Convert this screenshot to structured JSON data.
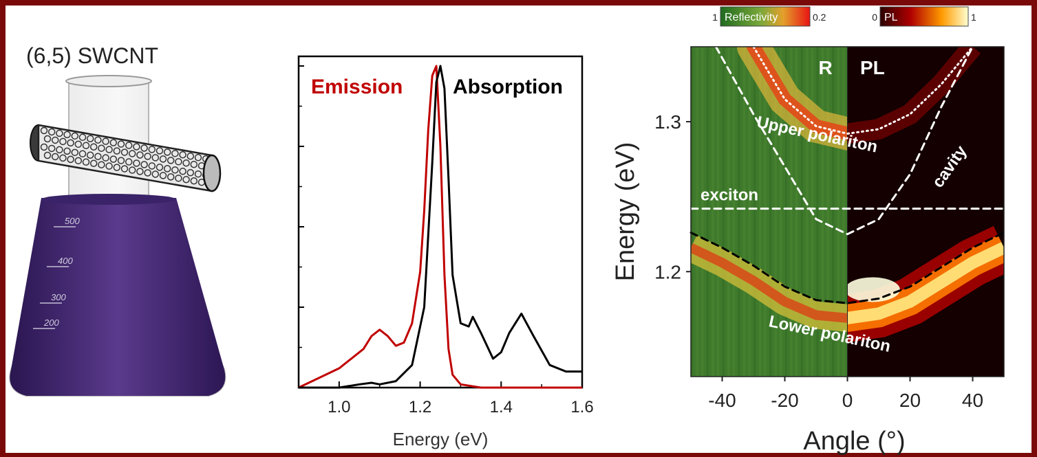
{
  "sample": {
    "title": "(6,5) SWCNT"
  },
  "beaker_labels": [
    "500",
    "400",
    "300",
    "200"
  ],
  "colors": {
    "frame": "#7a0a0a",
    "emission": "#c00000",
    "absorption": "#000000",
    "solution": "#3b2163"
  },
  "chart_data": [
    {
      "type": "line",
      "xlabel": "Energy (eV)",
      "ylabel": "",
      "xlim": [
        0.9,
        1.6
      ],
      "ylim": [
        0,
        1
      ],
      "xticks": [
        "1.0",
        "1.2",
        "1.4",
        "1.6"
      ],
      "series": [
        {
          "name": "Emission",
          "color": "#c00000",
          "x": [
            0.9,
            0.95,
            1.0,
            1.03,
            1.06,
            1.08,
            1.1,
            1.12,
            1.14,
            1.16,
            1.18,
            1.2,
            1.21,
            1.22,
            1.23,
            1.24,
            1.25,
            1.26,
            1.27,
            1.28,
            1.3,
            1.35,
            1.4,
            1.5,
            1.6
          ],
          "y": [
            0.0,
            0.03,
            0.06,
            0.09,
            0.12,
            0.16,
            0.18,
            0.16,
            0.13,
            0.14,
            0.2,
            0.36,
            0.55,
            0.8,
            0.97,
            1.0,
            0.75,
            0.35,
            0.12,
            0.04,
            0.01,
            0.0,
            0.0,
            0.0,
            0.0
          ]
        },
        {
          "name": "Absorption",
          "color": "#000000",
          "x": [
            0.9,
            1.0,
            1.05,
            1.08,
            1.1,
            1.14,
            1.18,
            1.21,
            1.23,
            1.24,
            1.25,
            1.26,
            1.27,
            1.28,
            1.3,
            1.32,
            1.33,
            1.35,
            1.38,
            1.4,
            1.42,
            1.45,
            1.48,
            1.52,
            1.56,
            1.6
          ],
          "y": [
            0.0,
            0.0,
            0.01,
            0.015,
            0.01,
            0.02,
            0.07,
            0.25,
            0.7,
            0.95,
            1.0,
            0.93,
            0.65,
            0.35,
            0.2,
            0.19,
            0.22,
            0.17,
            0.09,
            0.11,
            0.17,
            0.23,
            0.16,
            0.07,
            0.05,
            0.05
          ]
        }
      ]
    },
    {
      "type": "heatmap",
      "xlabel": "Angle (°)",
      "ylabel": "Energy (eV)",
      "xlim": [
        -50,
        50
      ],
      "ylim": [
        1.13,
        1.35
      ],
      "xticks": [
        -40,
        -20,
        0,
        20,
        40
      ],
      "yticks": [
        1.2,
        1.3
      ],
      "panels": [
        {
          "name": "R",
          "x_range": [
            -50,
            0
          ],
          "colorbar": {
            "label": "Reflectivity",
            "min": "1",
            "max": "0.2"
          }
        },
        {
          "name": "PL",
          "x_range": [
            0,
            50
          ],
          "colorbar": {
            "label": "PL",
            "min": "0",
            "max": "1"
          }
        }
      ],
      "lines": [
        {
          "name": "exciton",
          "style": "dashed",
          "color": "#ffffff",
          "x": [
            -50,
            50
          ],
          "y": [
            1.242,
            1.242
          ]
        },
        {
          "name": "cavity",
          "style": "dashed",
          "color": "#ffffff",
          "x": [
            -42,
            -30,
            -20,
            -10,
            0,
            10,
            20,
            30,
            40
          ],
          "y": [
            1.35,
            1.305,
            1.27,
            1.235,
            1.225,
            1.235,
            1.265,
            1.31,
            1.35
          ]
        },
        {
          "name": "Upper polariton",
          "style": "dotted",
          "color": "#ffffff",
          "x": [
            -30,
            -20,
            -10,
            0,
            10,
            20,
            30,
            40
          ],
          "y": [
            1.35,
            1.315,
            1.297,
            1.292,
            1.295,
            1.305,
            1.325,
            1.35
          ]
        },
        {
          "name": "Lower polariton",
          "style": "dashed",
          "color": "#000000",
          "x": [
            -50,
            -40,
            -30,
            -20,
            -10,
            0,
            10,
            20,
            30,
            40,
            50
          ],
          "y": [
            1.226,
            1.216,
            1.204,
            1.19,
            1.181,
            1.179,
            1.182,
            1.19,
            1.203,
            1.216,
            1.226
          ]
        }
      ],
      "annotations": {
        "r_label": "R",
        "pl_label": "PL",
        "exciton": "exciton",
        "upper": "Upper polariton",
        "cavity": "cavity",
        "lower": "Lower polariton"
      }
    }
  ]
}
